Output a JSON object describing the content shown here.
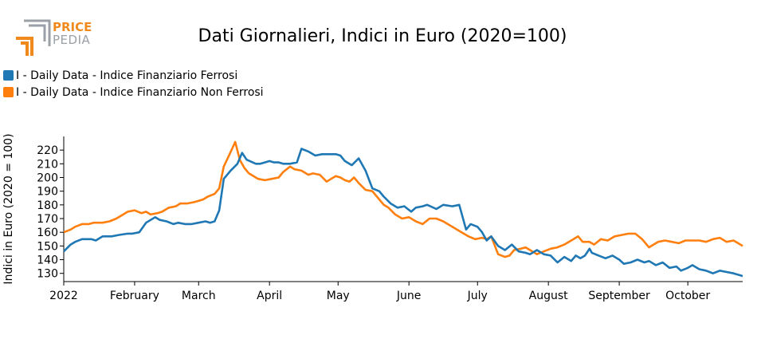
{
  "logo": {
    "word1": "PRICE",
    "word2": "PEDIA",
    "orange": "#f08a1d",
    "gray": "#9aa0a6"
  },
  "chart_data": {
    "type": "line",
    "title": "Dati Giornalieri, Indici in Euro (2020=100)",
    "ylabel": "Indici in Euro (2020 = 100)",
    "xlabel": "",
    "x_tick_labels": [
      "2022",
      "February",
      "March",
      "April",
      "May",
      "June",
      "July",
      "August",
      "September",
      "October"
    ],
    "y_ticks": [
      130,
      140,
      150,
      160,
      170,
      180,
      190,
      200,
      210,
      220
    ],
    "ylim": [
      124,
      230
    ],
    "xlim": [
      0,
      297
    ],
    "grid": false,
    "legend_position": "top-left",
    "series": [
      {
        "name": "I - Daily Data - Indice Finanziario Ferrosi",
        "color": "#1f77b4",
        "x": [
          0,
          3,
          5,
          8,
          12,
          14,
          17,
          21,
          24,
          28,
          30,
          33,
          36,
          40,
          42,
          45,
          48,
          50,
          53,
          56,
          59,
          62,
          64,
          66,
          68,
          70,
          73,
          76,
          78,
          80,
          84,
          86,
          88,
          90,
          92,
          94,
          96,
          99,
          102,
          104,
          107,
          110,
          113,
          116,
          119,
          121,
          123,
          126,
          129,
          132,
          135,
          138,
          140,
          143,
          146,
          149,
          152,
          154,
          157,
          159,
          163,
          166,
          170,
          173,
          176,
          178,
          181,
          183,
          185,
          187,
          190,
          193,
          196,
          199,
          202,
          204,
          207,
          210,
          213,
          216,
          219,
          222,
          224,
          226,
          228,
          230,
          231,
          234,
          237,
          240,
          243,
          245,
          248,
          251,
          254,
          256,
          259,
          262,
          265,
          268,
          270,
          273,
          275,
          278,
          281,
          284,
          287,
          290,
          293,
          295,
          297
        ],
        "values": [
          146,
          151,
          153,
          155,
          155,
          154,
          157,
          157,
          158,
          159,
          159,
          160,
          167,
          171,
          169,
          168,
          166,
          167,
          166,
          166,
          167,
          168,
          167,
          168,
          176,
          199,
          205,
          210,
          218,
          213,
          210,
          210,
          211,
          212,
          211,
          211,
          210,
          210,
          211,
          221,
          219,
          216,
          217,
          217,
          217,
          216,
          212,
          209,
          214,
          205,
          192,
          190,
          186,
          181,
          178,
          179,
          175,
          178,
          179,
          180,
          177,
          180,
          179,
          180,
          162,
          166,
          164,
          160,
          154,
          157,
          150,
          147,
          151,
          146,
          145,
          144,
          147,
          144,
          143,
          138,
          142,
          139,
          143,
          141,
          143,
          148,
          145,
          143,
          141,
          143,
          140,
          137,
          138,
          140,
          138,
          139,
          136,
          138,
          134,
          135,
          132,
          134,
          136,
          133,
          132,
          130,
          132,
          131,
          130,
          129,
          128
        ]
      },
      {
        "name": "I - Daily Data - Indice Finanziario Non Ferrosi",
        "color": "#ff7f0e",
        "x": [
          0,
          3,
          5,
          8,
          11,
          13,
          17,
          20,
          23,
          26,
          28,
          31,
          34,
          36,
          38,
          41,
          43,
          46,
          49,
          51,
          54,
          57,
          59,
          61,
          63,
          66,
          68,
          70,
          72,
          75,
          77,
          79,
          81,
          83,
          85,
          88,
          91,
          94,
          96,
          99,
          101,
          104,
          107,
          109,
          112,
          115,
          117,
          119,
          121,
          123,
          125,
          127,
          129,
          132,
          135,
          137,
          140,
          142,
          145,
          148,
          151,
          154,
          157,
          160,
          163,
          166,
          169,
          171,
          174,
          177,
          180,
          183,
          185,
          187,
          190,
          193,
          195,
          197,
          200,
          202,
          205,
          207,
          210,
          213,
          216,
          219,
          222,
          225,
          227,
          230,
          232,
          235,
          238,
          241,
          244,
          247,
          250,
          253,
          256,
          258,
          260,
          263,
          266,
          269,
          272,
          275,
          278,
          281,
          284,
          287,
          290,
          293,
          295,
          297
        ],
        "values": [
          160,
          162,
          164,
          166,
          166,
          167,
          167,
          168,
          170,
          173,
          175,
          176,
          174,
          175,
          173,
          174,
          175,
          178,
          179,
          181,
          181,
          182,
          183,
          184,
          186,
          188,
          192,
          208,
          215,
          226,
          213,
          207,
          203,
          201,
          199,
          198,
          199,
          200,
          204,
          208,
          206,
          205,
          202,
          203,
          202,
          197,
          199,
          201,
          200,
          198,
          197,
          200,
          196,
          191,
          190,
          186,
          180,
          178,
          173,
          170,
          171,
          168,
          166,
          170,
          170,
          168,
          165,
          163,
          160,
          157,
          155,
          156,
          155,
          157,
          144,
          142,
          143,
          147,
          148,
          149,
          146,
          144,
          146,
          148,
          149,
          151,
          154,
          157,
          153,
          153,
          151,
          155,
          154,
          157,
          158,
          159,
          159,
          155,
          149,
          151,
          153,
          154,
          153,
          152,
          154,
          154,
          154,
          153,
          155,
          156,
          153,
          154,
          152,
          150
        ]
      }
    ]
  }
}
